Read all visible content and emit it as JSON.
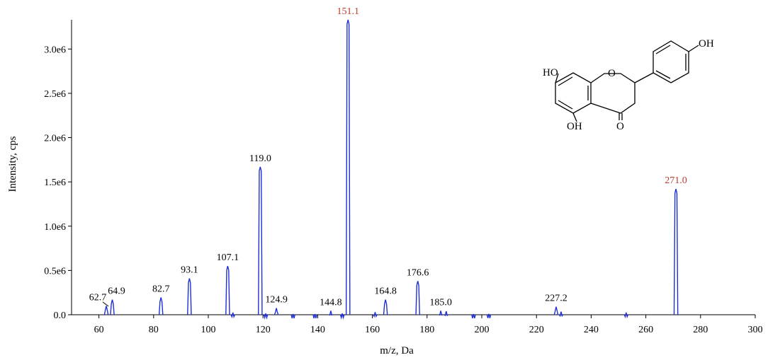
{
  "chart_data": {
    "type": "bar",
    "xlabel": "m/z, Da",
    "ylabel": "Intensity, cps",
    "xlim": [
      50,
      300
    ],
    "ylim": [
      0,
      3330000
    ],
    "x_ticks": [
      60,
      80,
      100,
      120,
      140,
      160,
      180,
      200,
      220,
      240,
      260,
      280,
      300
    ],
    "x_tick_labels": [
      "60",
      "80",
      "100",
      "120",
      "140",
      "160",
      "180",
      "200",
      "220",
      "240",
      "260",
      "280",
      "300"
    ],
    "y_ticks": [
      0,
      500000,
      1000000,
      1500000,
      2000000,
      2500000,
      3000000
    ],
    "y_tick_labels": [
      "0.0",
      "0.5e6",
      "1.0e6",
      "1.5e6",
      "2.0e6",
      "2.5e6",
      "3.0e6"
    ],
    "grid": false,
    "series_color": "#1f2fd6",
    "highlight_color": "#c0392b",
    "peaks": [
      {
        "mz": 62.7,
        "intensity": 100000,
        "label": "62.7"
      },
      {
        "mz": 64.9,
        "intensity": 170000,
        "label": "64.9"
      },
      {
        "mz": 82.7,
        "intensity": 195000,
        "label": "82.7"
      },
      {
        "mz": 93.1,
        "intensity": 410000,
        "label": "93.1"
      },
      {
        "mz": 107.1,
        "intensity": 550000,
        "label": "107.1"
      },
      {
        "mz": 109.0,
        "intensity": 25000,
        "label": ""
      },
      {
        "mz": 119.0,
        "intensity": 1670000,
        "label": "119.0"
      },
      {
        "mz": 121.0,
        "intensity": 15000,
        "label": ""
      },
      {
        "mz": 124.9,
        "intensity": 75000,
        "label": "124.9"
      },
      {
        "mz": 131.0,
        "intensity": 8000,
        "label": ""
      },
      {
        "mz": 139.0,
        "intensity": 8000,
        "label": ""
      },
      {
        "mz": 144.8,
        "intensity": 45000,
        "label": "144.8"
      },
      {
        "mz": 149.0,
        "intensity": 15000,
        "label": ""
      },
      {
        "mz": 151.1,
        "intensity": 3330000,
        "label": "151.1",
        "highlight": true
      },
      {
        "mz": 161.0,
        "intensity": 30000,
        "label": ""
      },
      {
        "mz": 164.8,
        "intensity": 170000,
        "label": "164.8"
      },
      {
        "mz": 176.6,
        "intensity": 380000,
        "label": "176.6"
      },
      {
        "mz": 185.0,
        "intensity": 45000,
        "label": "185.0"
      },
      {
        "mz": 187.0,
        "intensity": 40000,
        "label": ""
      },
      {
        "mz": 197.0,
        "intensity": 8000,
        "label": ""
      },
      {
        "mz": 202.6,
        "intensity": 10000,
        "label": ""
      },
      {
        "mz": 227.2,
        "intensity": 90000,
        "label": "227.2"
      },
      {
        "mz": 229.0,
        "intensity": 35000,
        "label": ""
      },
      {
        "mz": 252.8,
        "intensity": 25000,
        "label": ""
      },
      {
        "mz": 271.0,
        "intensity": 1420000,
        "label": "271.0",
        "highlight": true
      }
    ]
  },
  "structure": {
    "labels": {
      "ho_left": "HO",
      "ring_o": "O",
      "oh_top": "OH",
      "oh_bottom": "OH",
      "carbonyl_o": "O"
    }
  }
}
